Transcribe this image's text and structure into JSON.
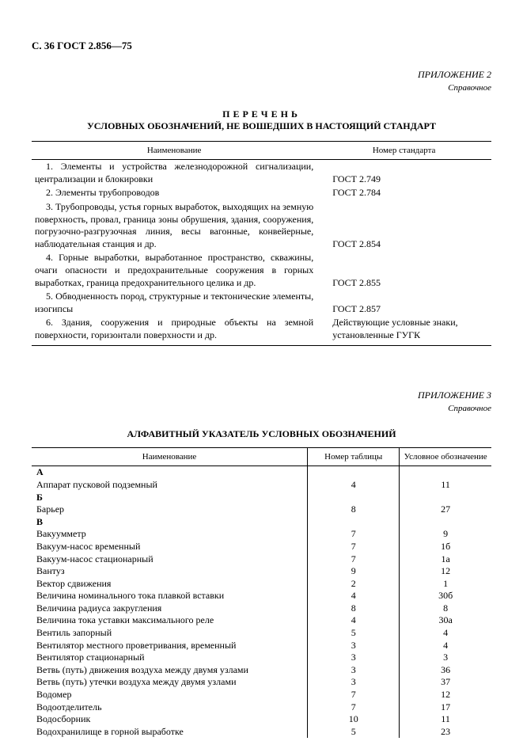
{
  "header": "С. 36 ГОСТ 2.856—75",
  "section1": {
    "annex": "ПРИЛОЖЕНИЕ 2",
    "annex_sub": "Справочное",
    "title1": "ПЕРЕЧЕНЬ",
    "title2": "УСЛОВНЫХ ОБОЗНАЧЕНИЙ, НЕ ВОШЕДШИХ В НАСТОЯЩИЙ СТАНДАРТ",
    "col1_header": "Наименование",
    "col2_header": "Номер стандарта",
    "rows": [
      {
        "text": "1. Элементы и устройства железнодорожной сигнализации, централизации и блокировки",
        "std": "ГОСТ 2.749"
      },
      {
        "text": "2. Элементы трубопроводов",
        "std": "ГОСТ 2.784"
      },
      {
        "text": "3. Трубопроводы, устья горных выработок, выходящих на земную поверхность, провал, граница зоны обрушения, здания, сооружения, погрузочно-разгрузочная линия, весы вагонные, конвейерные, наблюдательная станция и др.",
        "std": "ГОСТ 2.854"
      },
      {
        "text": "4. Горные выработки, выработанное пространство, скважины, очаги опасности и предохранительные сооружения в горных выработках, граница предохранительного целика и др.",
        "std": "ГОСТ 2.855"
      },
      {
        "text": "5. Обводненность пород, структурные и тектонические элементы, изогипсы",
        "std": "ГОСТ 2.857"
      },
      {
        "text": "6. Здания, сооружения и природные объекты на земной поверхности, горизонтали поверхности и др.",
        "std": "Действующие условные знаки, установленные ГУГК"
      }
    ]
  },
  "section2": {
    "annex": "ПРИЛОЖЕНИЕ 3",
    "annex_sub": "Справочное",
    "title": "АЛФАВИТНЫЙ УКАЗАТЕЛЬ УСЛОВНЫХ ОБОЗНАЧЕНИЙ",
    "col1_header": "Наименование",
    "col2_header": "Номер таблицы",
    "col3_header": "Условное обозначение",
    "groups": [
      {
        "letter": "А",
        "rows": [
          {
            "name": "Аппарат пусковой подземный",
            "tab": "4",
            "des": "11"
          }
        ]
      },
      {
        "letter": "Б",
        "rows": [
          {
            "name": "Барьер",
            "tab": "8",
            "des": "27"
          }
        ]
      },
      {
        "letter": "В",
        "rows": [
          {
            "name": "Вакуумметр",
            "tab": "7",
            "des": "9"
          },
          {
            "name": "Вакуум-насос временный",
            "tab": "7",
            "des": "1б"
          },
          {
            "name": "Вакуум-насос стационарный",
            "tab": "7",
            "des": "1а"
          },
          {
            "name": "Вантуз",
            "tab": "9",
            "des": "12"
          },
          {
            "name": "Вектор сдвижения",
            "tab": "2",
            "des": "1"
          },
          {
            "name": "Величина номинального тока плавкой вставки",
            "tab": "4",
            "des": "30б"
          },
          {
            "name": "Величина радиуса закругления",
            "tab": "8",
            "des": "8"
          },
          {
            "name": "Величина тока уставки максимального реле",
            "tab": "4",
            "des": "30а"
          },
          {
            "name": "Вентиль запорный",
            "tab": "5",
            "des": "4"
          },
          {
            "name": "Вентилятор местного проветривания, временный",
            "tab": "3",
            "des": "4"
          },
          {
            "name": "Вентилятор стационарный",
            "tab": "3",
            "des": "3"
          },
          {
            "name": "Ветвь (путь) движения воздуха между двумя узлами",
            "tab": "3",
            "des": "36"
          },
          {
            "name": "Ветвь (путь) утечки воздуха между двумя узлами",
            "tab": "3",
            "des": "37"
          },
          {
            "name": "Водомер",
            "tab": "7",
            "des": "12"
          },
          {
            "name": "Водоотделитель",
            "tab": "7",
            "des": "17"
          },
          {
            "name": "Водосборник",
            "tab": "10",
            "des": "11"
          },
          {
            "name": "Водохранилище в горной выработке",
            "tab": "5",
            "des": "23"
          }
        ]
      }
    ]
  }
}
